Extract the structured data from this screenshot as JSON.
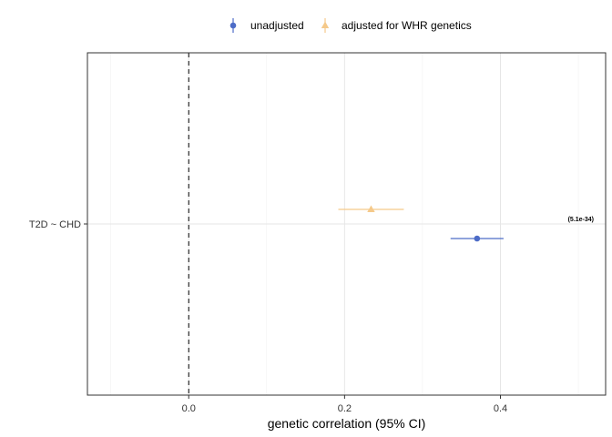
{
  "chart_data": {
    "type": "scatter",
    "orientation": "horizontal-forest",
    "xlabel": "genetic correlation (95% CI)",
    "categories": [
      "T2D ~ CHD"
    ],
    "xlim": [
      -0.13,
      0.535
    ],
    "xticks": [
      0.0,
      0.2,
      0.4
    ],
    "xtick_labels": [
      "0.0",
      "0.2",
      "0.4"
    ],
    "reference_line": {
      "x": 0,
      "style": "dashed"
    },
    "grid": true,
    "legend_position": "top",
    "series": [
      {
        "name": "unadjusted",
        "color": "#4D6CC7",
        "marker": "circle",
        "points": [
          {
            "category": "T2D ~ CHD",
            "estimate": 0.37,
            "lower": 0.336,
            "upper": 0.404
          }
        ]
      },
      {
        "name": "adjusted for WHR genetics",
        "color": "#F5C98A",
        "marker": "triangle",
        "points": [
          {
            "category": "T2D ~ CHD",
            "estimate": 0.234,
            "lower": 0.192,
            "upper": 0.276
          }
        ]
      }
    ],
    "annotations": [
      {
        "category": "T2D ~ CHD",
        "text": "(5.1e-34)"
      }
    ]
  }
}
